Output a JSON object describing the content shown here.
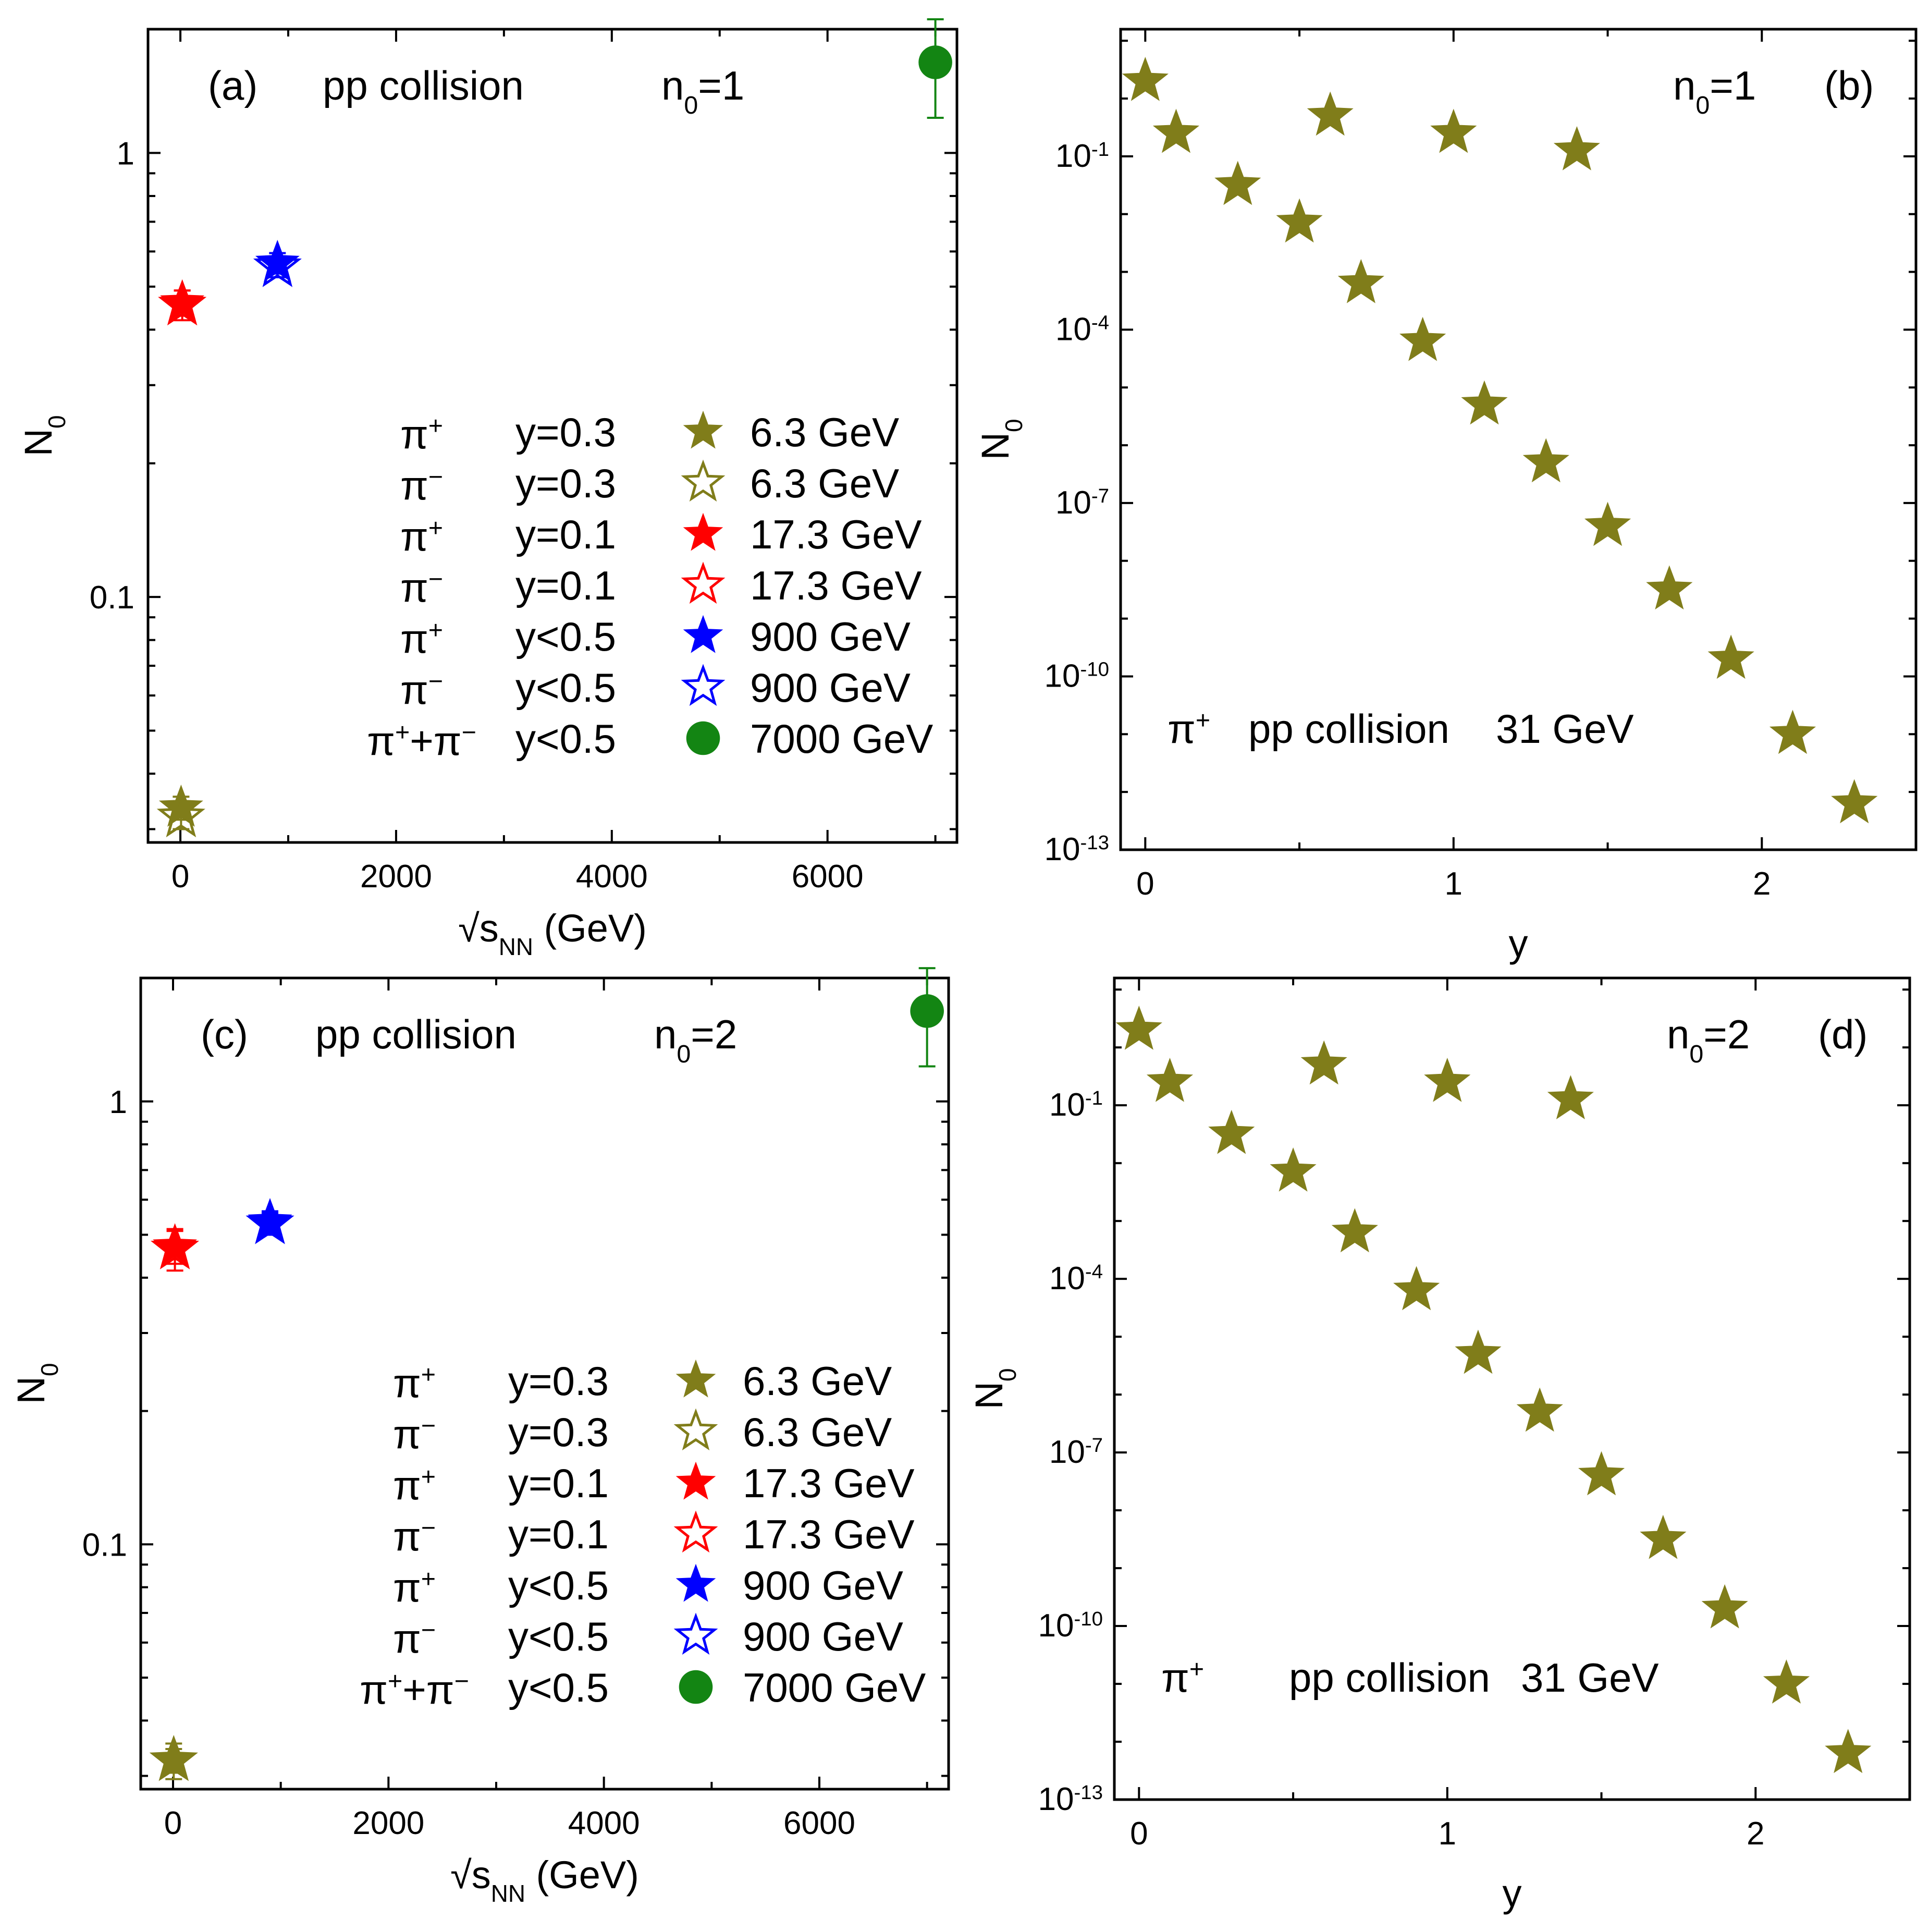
{
  "chart_data": [
    {
      "panel": "(a)",
      "type": "scatter",
      "title": "pp collision",
      "param_label": "n0=1",
      "xlabel": "√sNN (GeV)",
      "ylabel": "N0",
      "xscale": "linear",
      "yscale": "log",
      "xlim": [
        -300,
        7200
      ],
      "ylim": [
        0.028,
        1.9
      ],
      "x_ticks": [
        "0",
        "2000",
        "4000",
        "6000"
      ],
      "y_ticks": [
        "0.1",
        "1"
      ],
      "legend_position": "center",
      "series": [
        {
          "name": "π+ y=0.3 6.3 GeV",
          "particle": "π+",
          "rapidity": "y=0.3",
          "energy": "6.3 GeV",
          "marker": "star-filled",
          "color": "#807D1A",
          "points": [
            {
              "x": 6.3,
              "y": 0.0335,
              "err": 0.002
            }
          ]
        },
        {
          "name": "π- y=0.3 6.3 GeV",
          "particle": "π−",
          "rapidity": "y=0.3",
          "energy": "6.3 GeV",
          "marker": "star-open",
          "color": "#807D1A",
          "points": [
            {
              "x": 6.3,
              "y": 0.032,
              "err": 0.002
            }
          ]
        },
        {
          "name": "π+ y=0.1 17.3 GeV",
          "particle": "π+",
          "rapidity": "y=0.1",
          "energy": "17.3 GeV",
          "marker": "star-filled",
          "color": "#FF0000",
          "points": [
            {
              "x": 17.3,
              "y": 0.46,
              "err": 0.03
            }
          ]
        },
        {
          "name": "π- y=0.1 17.3 GeV",
          "particle": "π−",
          "rapidity": "y=0.1",
          "energy": "17.3 GeV",
          "marker": "star-open",
          "color": "#FF0000",
          "points": [
            {
              "x": 17.3,
              "y": 0.455,
              "err": 0.035
            }
          ]
        },
        {
          "name": "π+ y<0.5 900 GeV",
          "particle": "π+",
          "rapidity": "y<0.5",
          "energy": "900 GeV",
          "marker": "star-filled",
          "color": "#0000FF",
          "points": [
            {
              "x": 900,
              "y": 0.565,
              "err": 0.03
            }
          ]
        },
        {
          "name": "π- y<0.5 900 GeV",
          "particle": "π−",
          "rapidity": "y<0.5",
          "energy": "900 GeV",
          "marker": "star-open",
          "color": "#0000FF",
          "points": [
            {
              "x": 900,
              "y": 0.555,
              "err": 0.03
            }
          ]
        },
        {
          "name": "π++π- y<0.5 7000 GeV",
          "particle": "π++π−",
          "rapidity": "y<0.5",
          "energy": "7000 GeV",
          "marker": "circle-filled",
          "color": "#138513",
          "points": [
            {
              "x": 7000,
              "y": 1.6,
              "err": 0.4
            }
          ]
        }
      ]
    },
    {
      "panel": "(b)",
      "type": "scatter",
      "title": "pp collision 31 GeV",
      "particle": "π+",
      "param_label": "n0=1",
      "xlabel": "y",
      "ylabel": "N0",
      "xscale": "linear",
      "yscale": "log",
      "xlim": [
        -0.08,
        2.5
      ],
      "ylim_exp": [
        -13,
        1.2
      ],
      "x_ticks": [
        "0",
        "1",
        "2"
      ],
      "y_tick_exponents": [
        -1,
        -4,
        -7,
        -10,
        -13
      ],
      "series": [
        {
          "name": "π+ 31 GeV",
          "marker": "star-filled",
          "color": "#807D1A",
          "x": [
            0.0,
            0.1,
            0.3,
            0.5,
            0.7,
            0.9,
            1.1,
            1.3,
            1.5,
            1.7,
            1.9,
            2.1,
            2.3,
            0.6,
            1.0,
            1.4
          ],
          "y_log10": [
            0.3,
            -0.6,
            -1.5,
            -2.15,
            -3.2,
            -4.2,
            -5.3,
            -6.3,
            -7.4,
            -8.5,
            -9.7,
            -11.0,
            -12.2,
            -0.3,
            -0.6,
            -0.9
          ]
        }
      ]
    },
    {
      "panel": "(c)",
      "type": "scatter",
      "title": "pp collision",
      "param_label": "n0=2",
      "xlabel": "√sNN (GeV)",
      "ylabel": "N0",
      "xscale": "linear",
      "yscale": "log",
      "xlim": [
        -300,
        7200
      ],
      "ylim": [
        0.028,
        1.9
      ],
      "x_ticks": [
        "0",
        "2000",
        "4000",
        "6000"
      ],
      "y_ticks": [
        "0.1",
        "1"
      ],
      "legend_position": "center",
      "series": [
        {
          "name": "π+ y=0.3 6.3 GeV",
          "particle": "π+",
          "rapidity": "y=0.3",
          "energy": "6.3 GeV",
          "marker": "star-filled",
          "color": "#807D1A",
          "points": [
            {
              "x": 6.3,
              "y": 0.0325,
              "err": 0.002
            }
          ]
        },
        {
          "name": "π- y=0.3 6.3 GeV",
          "particle": "π−",
          "rapidity": "y=0.3",
          "energy": "6.3 GeV",
          "marker": "star-open",
          "color": "#807D1A",
          "points": [
            {
              "x": 6.3,
              "y": 0.0325,
              "err": 0.003
            }
          ]
        },
        {
          "name": "π+ y=0.1 17.3 GeV",
          "particle": "π+",
          "rapidity": "y=0.1",
          "energy": "17.3 GeV",
          "marker": "star-filled",
          "color": "#FF0000",
          "points": [
            {
              "x": 17.3,
              "y": 0.47,
              "err": 0.04
            }
          ]
        },
        {
          "name": "π- y=0.1 17.3 GeV",
          "particle": "π−",
          "rapidity": "y=0.1",
          "energy": "17.3 GeV",
          "marker": "star-open",
          "color": "#FF0000",
          "points": [
            {
              "x": 17.3,
              "y": 0.465,
              "err": 0.05
            }
          ]
        },
        {
          "name": "π+ y<0.5 900 GeV",
          "particle": "π+",
          "rapidity": "y<0.5",
          "energy": "900 GeV",
          "marker": "star-filled",
          "color": "#0000FF",
          "points": [
            {
              "x": 900,
              "y": 0.535,
              "err": 0.03
            }
          ]
        },
        {
          "name": "π- y<0.5 900 GeV",
          "particle": "π−",
          "rapidity": "y<0.5",
          "energy": "900 GeV",
          "marker": "star-open",
          "color": "#0000FF",
          "points": [
            {
              "x": 900,
              "y": 0.53,
              "err": 0.03
            }
          ]
        },
        {
          "name": "π++π- y<0.5 7000 GeV",
          "particle": "π++π−",
          "rapidity": "y<0.5",
          "energy": "7000 GeV",
          "marker": "circle-filled",
          "color": "#138513",
          "points": [
            {
              "x": 7000,
              "y": 1.6,
              "err": 0.4
            }
          ]
        }
      ]
    },
    {
      "panel": "(d)",
      "type": "scatter",
      "title": "pp collision 31 GeV",
      "particle": "π+",
      "param_label": "n0=2",
      "xlabel": "y",
      "ylabel": "N0",
      "xscale": "linear",
      "yscale": "log",
      "xlim": [
        -0.08,
        2.5
      ],
      "ylim_exp": [
        -13,
        1.2
      ],
      "x_ticks": [
        "0",
        "1",
        "2"
      ],
      "y_tick_exponents": [
        -1,
        -4,
        -7,
        -10,
        -13
      ],
      "series": [
        {
          "name": "π+ 31 GeV",
          "marker": "star-filled",
          "color": "#807D1A",
          "x": [
            0.0,
            0.1,
            0.3,
            0.5,
            0.7,
            0.9,
            1.1,
            1.3,
            1.5,
            1.7,
            1.9,
            2.1,
            2.3,
            0.6,
            1.0,
            1.4
          ],
          "y_log10": [
            0.3,
            -0.6,
            -1.5,
            -2.15,
            -3.2,
            -4.2,
            -5.3,
            -6.3,
            -7.4,
            -8.5,
            -9.7,
            -11.0,
            -12.2,
            -0.3,
            -0.6,
            -0.9
          ]
        }
      ]
    }
  ],
  "text": {
    "panel_a": "(a)",
    "panel_b": "(b)",
    "panel_c": "(c)",
    "panel_d": "(d)",
    "pp_collision": "pp collision",
    "energy_31": "31 GeV",
    "n0_base": "n",
    "n0_sub": "0",
    "n0_eq_1": "=1",
    "n0_eq_2": "=2",
    "N_base": "N",
    "N_sub": "0",
    "sqrt": "√",
    "s_base": "s",
    "s_sub": "NN",
    "gev_unit": " (GeV)",
    "y_label": "y",
    "pi": "π",
    "plus": "+",
    "minus": "−",
    "legend": [
      {
        "particle": "π+",
        "rapidity": "y=0.3",
        "energy": "6.3 GeV"
      },
      {
        "particle": "π−",
        "rapidity": "y=0.3",
        "energy": "6.3 GeV"
      },
      {
        "particle": "π+",
        "rapidity": "y=0.1",
        "energy": "17.3 GeV"
      },
      {
        "particle": "π−",
        "rapidity": "y=0.1",
        "energy": "17.3 GeV"
      },
      {
        "particle": "π+",
        "rapidity": "y<0.5",
        "energy": "900 GeV"
      },
      {
        "particle": "π−",
        "rapidity": "y<0.5",
        "energy": "900 GeV"
      },
      {
        "particle": "π++π−",
        "rapidity": "y<0.5",
        "energy": "7000 GeV"
      }
    ]
  }
}
